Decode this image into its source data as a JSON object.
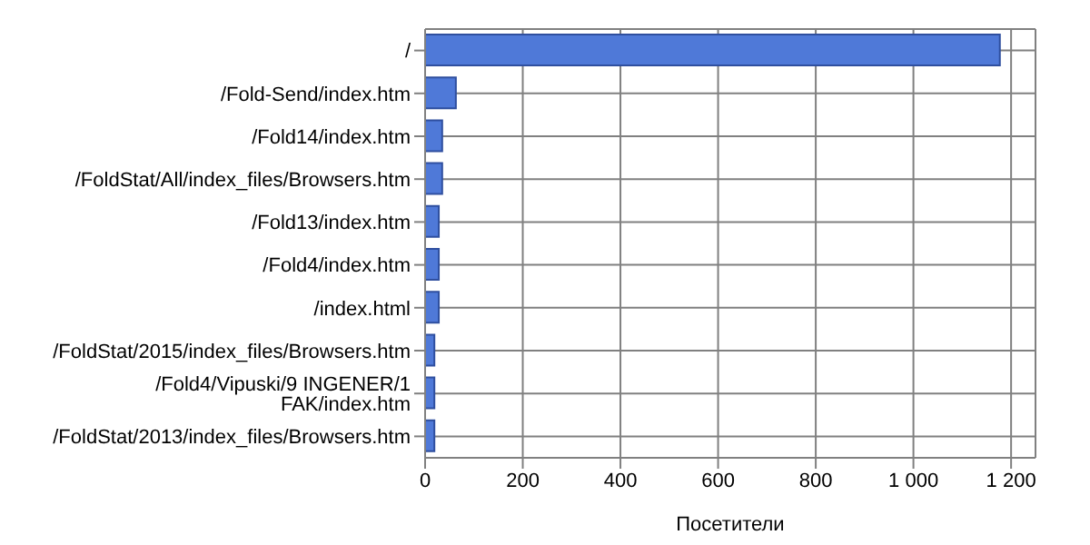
{
  "chart_data": {
    "type": "bar",
    "orientation": "horizontal",
    "xlabel": "Посетители",
    "categories": [
      "/",
      "/Fold-Send/index.htm",
      "/Fold14/index.htm",
      "/FoldStat/All/index_files/Browsers.htm",
      "/Fold13/index.htm",
      "/Fold4/index.htm",
      "/index.html",
      "/FoldStat/2015/index_files/Browsers.htm",
      "/Fold4/Vipuski/9 INGENER/1 FAK/index.htm",
      "/FoldStat/2013/index_files/Browsers.htm"
    ],
    "values": [
      1177,
      63,
      35,
      35,
      28,
      28,
      28,
      19,
      19,
      19
    ],
    "color": "#4f79d8",
    "xlim": [
      0,
      1250
    ],
    "xticks": [
      0,
      200,
      400,
      600,
      800,
      {
        "value": 1000,
        "label": "1 000"
      },
      {
        "value": 1200,
        "label": "1 200"
      }
    ],
    "grid": true
  }
}
